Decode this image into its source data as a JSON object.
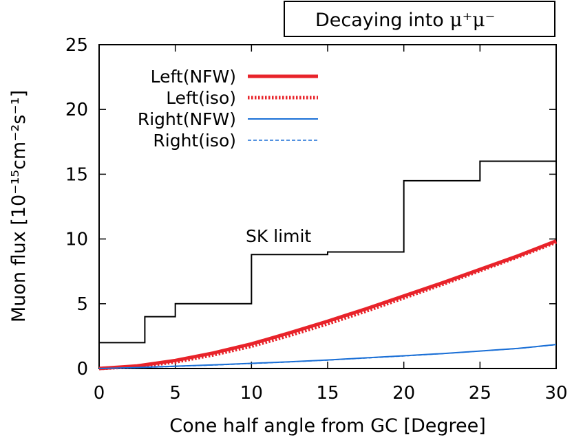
{
  "chart_data": {
    "type": "line",
    "title_prefix": "Decaying into ",
    "title_math": "μ⁺μ⁻",
    "xlabel": "Cone half angle from GC [Degree]",
    "ylabel": "Muon flux [10⁻¹⁵cm⁻²s⁻¹]",
    "xlim": [
      0,
      30
    ],
    "ylim": [
      0,
      25
    ],
    "xticks": [
      0,
      5,
      10,
      15,
      20,
      25,
      30
    ],
    "yticks": [
      0,
      5,
      10,
      15,
      20,
      25
    ],
    "grid": false,
    "legend_position": "top-left",
    "annotation": "SK limit",
    "sk_limit": {
      "name": "SK limit",
      "color": "#000000",
      "steps": [
        {
          "x0": 0,
          "x1": 3,
          "y": 2.0
        },
        {
          "x0": 3,
          "x1": 5,
          "y": 4.0
        },
        {
          "x0": 5,
          "x1": 10,
          "y": 5.0
        },
        {
          "x0": 10,
          "x1": 15,
          "y": 8.8
        },
        {
          "x0": 15,
          "x1": 20,
          "y": 9.0
        },
        {
          "x0": 20,
          "x1": 25,
          "y": 14.5
        },
        {
          "x0": 25,
          "x1": 30,
          "y": 16.0
        }
      ]
    },
    "series": [
      {
        "name": "Left(NFW)",
        "color": "#e8232a",
        "style": "solid-thick",
        "x": [
          0,
          2.5,
          5,
          7.5,
          10,
          12.5,
          15,
          17.5,
          20,
          22.5,
          25,
          27.5,
          30
        ],
        "y": [
          0.0,
          0.2,
          0.62,
          1.2,
          1.9,
          2.75,
          3.65,
          4.6,
          5.6,
          6.6,
          7.65,
          8.7,
          9.85
        ]
      },
      {
        "name": "Left(iso)",
        "color": "#e8232a",
        "style": "dotted-thick",
        "x": [
          0,
          2.5,
          5,
          7.5,
          10,
          12.5,
          15,
          17.5,
          20,
          22.5,
          25,
          27.5,
          30
        ],
        "y": [
          0.0,
          0.15,
          0.5,
          1.05,
          1.72,
          2.55,
          3.45,
          4.42,
          5.45,
          6.48,
          7.55,
          8.62,
          9.75
        ]
      },
      {
        "name": "Right(NFW)",
        "color": "#1a6fd6",
        "style": "solid-thin",
        "x": [
          0,
          2.5,
          5,
          7.5,
          10,
          12.5,
          15,
          17.5,
          20,
          22.5,
          25,
          27.5,
          30
        ],
        "y": [
          0.0,
          0.07,
          0.18,
          0.28,
          0.4,
          0.52,
          0.66,
          0.82,
          0.98,
          1.15,
          1.35,
          1.55,
          1.85
        ]
      },
      {
        "name": "Right(iso)",
        "color": "#1a6fd6",
        "style": "dashed-thin",
        "x": [
          0,
          2.5,
          5,
          7.5,
          10,
          12.5,
          15,
          17.5,
          20,
          22.5,
          25,
          27.5,
          30
        ],
        "y": [
          0.0,
          0.06,
          0.16,
          0.26,
          0.38,
          0.5,
          0.64,
          0.8,
          0.96,
          1.14,
          1.34,
          1.54,
          1.83
        ]
      }
    ]
  }
}
